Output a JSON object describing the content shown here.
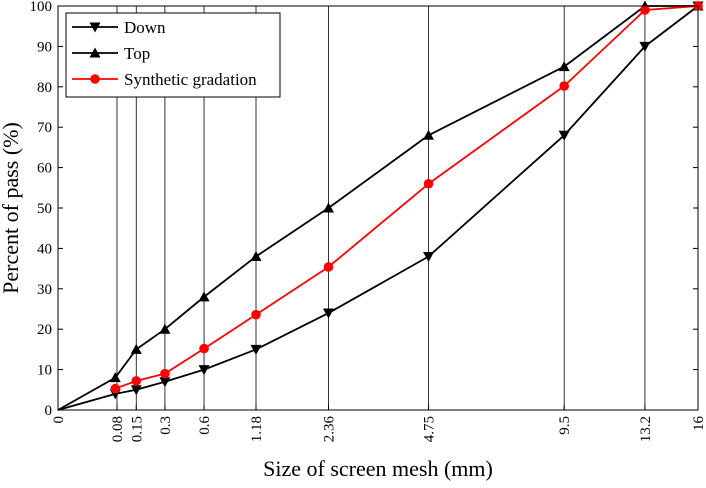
{
  "chart_data": {
    "type": "line",
    "title": "",
    "xlabel": "Size of screen mesh (mm)",
    "ylabel": "Percent of pass (%)",
    "x_tick_labels": [
      "0",
      "0.08",
      "0.15",
      "0.3",
      "0.6",
      "1.18",
      "2.36",
      "4.75",
      "9.5",
      "13.2",
      "16"
    ],
    "y_tick_labels": [
      "0",
      "10",
      "20",
      "30",
      "40",
      "50",
      "60",
      "70",
      "80",
      "90",
      "100"
    ],
    "ylim": [
      0,
      100
    ],
    "x_scale": "gradation (0.45 power)",
    "vertical_grid_at_ticks": true,
    "legend_position": "top-left",
    "series": [
      {
        "name": "Down",
        "color": "#000000",
        "marker": "triangle-down",
        "x": [
          0,
          0.075,
          0.15,
          0.3,
          0.6,
          1.18,
          2.36,
          4.75,
          9.5,
          13.2,
          16
        ],
        "y": [
          0,
          4,
          5,
          7,
          10,
          15,
          24,
          38,
          68,
          90,
          100
        ]
      },
      {
        "name": "Top",
        "color": "#000000",
        "marker": "triangle-up",
        "x": [
          0,
          0.075,
          0.15,
          0.3,
          0.6,
          1.18,
          2.36,
          4.75,
          9.5,
          13.2,
          16
        ],
        "y": [
          0,
          8,
          15,
          20,
          28,
          38,
          50,
          68,
          85,
          100,
          100
        ]
      },
      {
        "name": "Synthetic gradation",
        "color": "#ff0000",
        "marker": "circle",
        "x": [
          0.075,
          0.15,
          0.3,
          0.6,
          1.18,
          2.36,
          4.75,
          9.5,
          13.2,
          16
        ],
        "y": [
          5.3,
          7.2,
          9.0,
          15.2,
          23.6,
          35.4,
          56.0,
          80.2,
          99.0,
          100
        ]
      }
    ]
  }
}
